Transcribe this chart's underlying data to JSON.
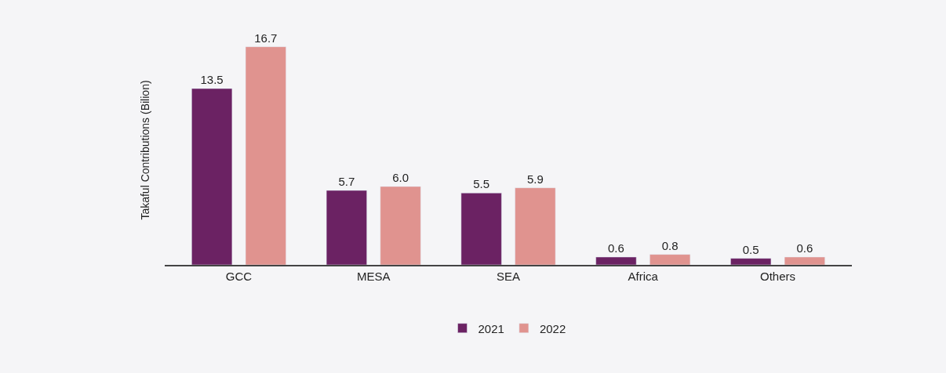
{
  "chart_data": {
    "type": "bar",
    "ylabel": "Takaful Contributions (Bilion)",
    "categories": [
      "GCC",
      "MESA",
      "SEA",
      "Africa",
      "Others"
    ],
    "series": [
      {
        "name": "2021",
        "color": "#6b2263",
        "values": [
          13.5,
          5.7,
          5.5,
          0.6,
          0.5
        ],
        "value_labels": [
          "13.5",
          "5.7",
          "5.5",
          "0.6",
          "0.5"
        ]
      },
      {
        "name": "2022",
        "color": "#e0938f",
        "values": [
          16.7,
          6.0,
          5.9,
          0.8,
          0.6
        ],
        "value_labels": [
          "16.7",
          "6.0",
          "5.9",
          "0.8",
          "0.6"
        ]
      }
    ],
    "legend": "bottom",
    "grid": false
  }
}
